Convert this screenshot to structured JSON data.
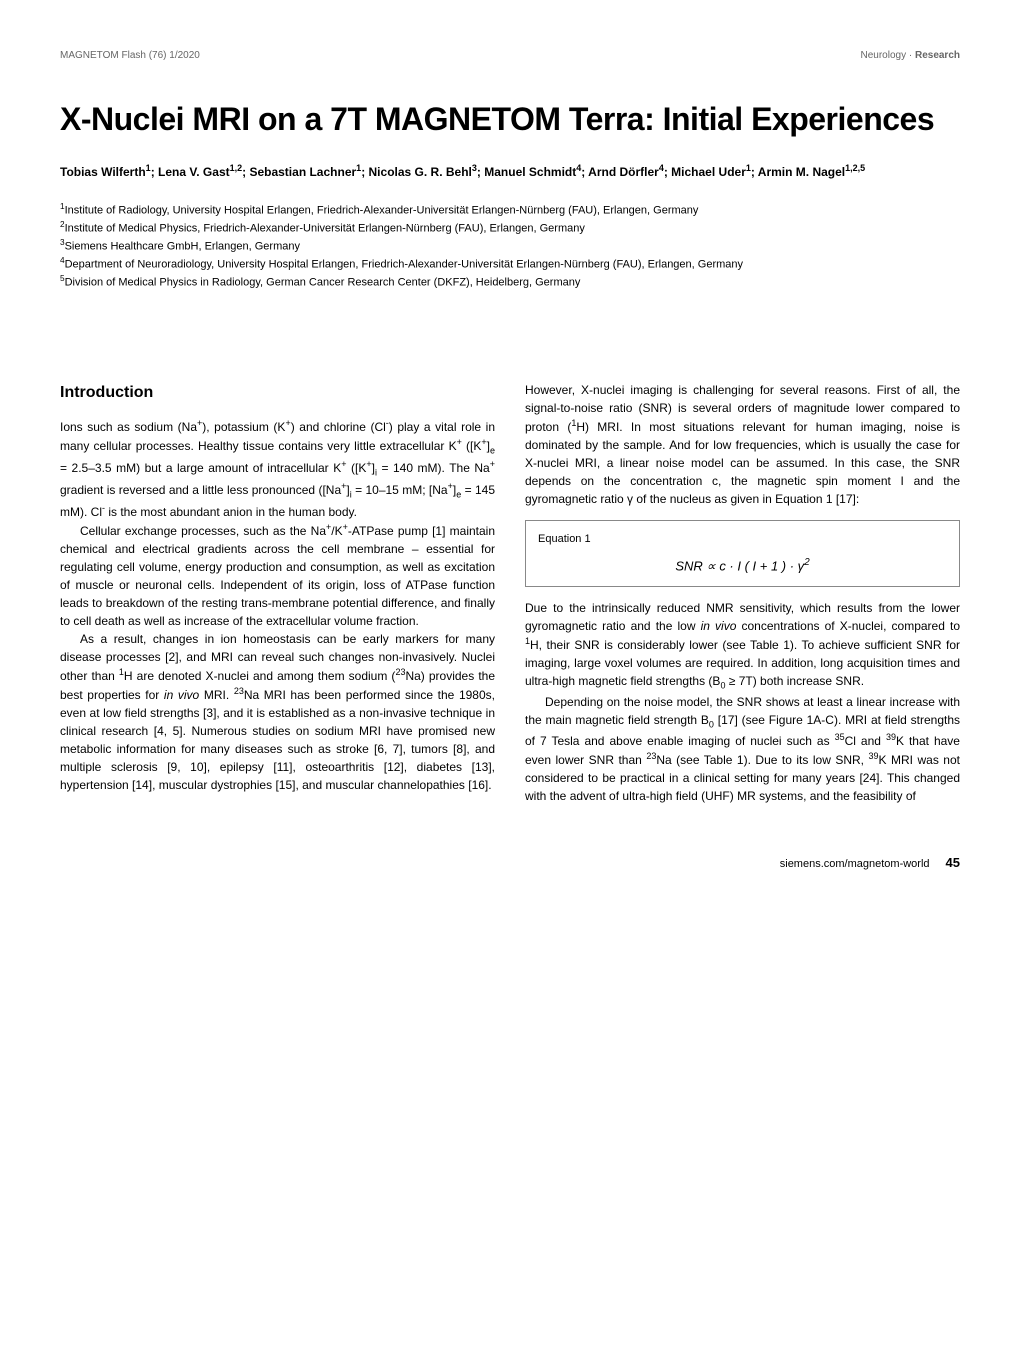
{
  "header": {
    "left": "MAGNETOM Flash (76) 1/2020",
    "right": "Neurology · Research"
  },
  "title": "X-Nuclei MRI on a 7T MAGNETOM Terra: Initial Experiences",
  "authors_html": "Tobias Wilferth<sup>1</sup>; Lena V. Gast<sup>1,2</sup>; Sebastian Lachner<sup>1</sup>; Nicolas G. R. Behl<sup>3</sup>; Manuel Schmidt<sup>4</sup>; Arnd Dörfler<sup>4</sup>; Michael Uder<sup>1</sup>; Armin M. Nagel<sup>1,2,5</sup>",
  "affiliations": [
    "<sup>1</sup>Institute of Radiology, University Hospital Erlangen, Friedrich-Alexander-Universität Erlangen-Nürnberg (FAU), Erlangen, Germany",
    "<sup>2</sup>Institute of Medical Physics, Friedrich-Alexander-Universität Erlangen-Nürnberg (FAU), Erlangen, Germany",
    "<sup>3</sup>Siemens Healthcare GmbH, Erlangen, Germany",
    "<sup>4</sup>Department of Neuroradiology, University Hospital Erlangen, Friedrich-Alexander-Universität Erlangen-Nürnberg (FAU), Erlangen, Germany",
    "<sup>5</sup>Division of Medical Physics in Radiology, German Cancer Research Center (DKFZ), Heidelberg, Germany"
  ],
  "section_heading": "Introduction",
  "left_col": {
    "p1_html": "Ions such as sodium (Na<sup>+</sup>), potassium (K<sup>+</sup>) and chlorine (Cl<sup>-</sup>) play a vital role in many cellular processes. Healthy tissue contains very little extracellular K<sup>+</sup> ([K<sup>+</sup>]<sub>e</sub> = 2.5–3.5 mM) but a large amount of intracellular K<sup>+</sup> ([K<sup>+</sup>]<sub>i</sub> = 140 mM). The Na<sup>+</sup> gradient is reversed and a little less pronounced ([Na<sup>+</sup>]<sub>i</sub> = 10–15 mM; [Na<sup>+</sup>]<sub>e</sub> = 145 mM). Cl<sup>-</sup> is the most abundant anion in the human body.",
    "p2_html": "Cellular exchange processes, such as the Na<sup>+</sup>/K<sup>+</sup>-ATPase pump [1] maintain chemical and electrical gradients across the cell membrane – essential for regulating cell volume, energy production and consumption, as well as excitation of muscle or neuronal cells. Independent of its origin, loss of ATPase function leads to breakdown of the resting trans-membrane potential difference, and finally to cell death as well as increase of the extracellular volume fraction.",
    "p3_html": "As a result, changes in ion homeostasis can be early markers for many disease processes [2], and MRI can reveal such changes non-invasively. Nuclei other than <sup>1</sup>H are denoted X-nuclei and among them sodium (<sup>23</sup>Na) provides the best properties for <i>in vivo</i> MRI. <sup>23</sup>Na MRI has been performed since the 1980s, even at low field strengths [3], and it is established as a non-invasive technique in clinical research [4, 5]. Numerous studies on sodium MRI have promised new metabolic information for many diseases such as stroke [6, 7], tumors [8], and multiple sclerosis [9, 10], epilepsy [11], osteoarthritis [12], diabetes [13], hypertension [14], muscular dystrophies [15], and muscular channelopathies [16]."
  },
  "right_col": {
    "p1_html": "However, X-nuclei imaging is challenging for several reasons. First of all, the signal-to-noise ratio (SNR) is several orders of magnitude lower compared to proton (<sup>1</sup>H) MRI. In most situations relevant for human imaging, noise is dominated by the sample. And for low frequencies, which is usually the case for X-nuclei MRI, a linear noise model can be assumed. In this case, the SNR depends on the concentration c, the magnetic spin moment I and the gyromagnetic ratio γ of the nucleus as given in Equation 1 [17]:",
    "eq_label": "Equation 1",
    "eq_formula_html": "SNR ∝ c · I ( I + 1 ) · γ<sup>2</sup>",
    "p2_html": "Due to the intrinsically reduced NMR sensitivity, which results from the lower gyromagnetic ratio and the low <i>in vivo</i> concentrations of X-nuclei, compared to <sup>1</sup>H, their SNR is considerably lower (see Table 1). To achieve sufficient SNR for imaging, large voxel volumes are required. In addition, long acquisition times and ultra-high magnetic field strengths (B<sub>0</sub> ≥ 7T) both increase SNR.",
    "p3_html": "Depending on the noise model, the SNR shows at least a linear increase with the main magnetic field strength B<sub>0</sub> [17] (see Figure 1A-C). MRI at field strengths of 7 Tesla and above enable imaging of nuclei such as <sup>35</sup>Cl and <sup>39</sup>K that have even lower SNR than <sup>23</sup>Na (see Table 1). Due to its low SNR, <sup>39</sup>K MRI was not considered to be practical in a clinical setting for many years [24]. This changed with the advent of ultra-high field (UHF) MR systems, and the feasibility of"
  },
  "footer": {
    "url": "siemens.com/magnetom-world",
    "page": "45"
  },
  "colors": {
    "text": "#000000",
    "muted": "#666666",
    "background": "#ffffff",
    "border": "#888888"
  },
  "typography": {
    "title_fontsize": 32,
    "title_weight": 900,
    "body_fontsize": 12,
    "heading_fontsize": 16,
    "header_fontsize": 10,
    "authors_fontsize": 12,
    "affiliations_fontsize": 11
  }
}
